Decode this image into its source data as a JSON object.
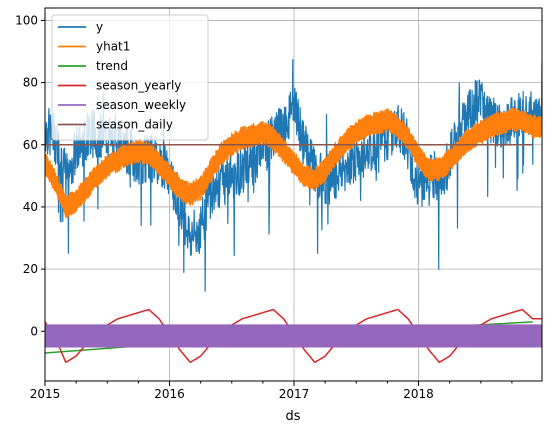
{
  "chart_data": {
    "type": "line",
    "xlabel": "ds",
    "ylabel": "",
    "title": "",
    "x_ticks": [
      "2015",
      "2016",
      "2017",
      "2018"
    ],
    "xlim": [
      "2015-01-01",
      "2018-12-31"
    ],
    "ylim": [
      -16,
      104
    ],
    "y_ticks": [
      0,
      20,
      40,
      60,
      80,
      100
    ],
    "grid": true,
    "legend_position": "upper-left",
    "series": [
      {
        "name": "y",
        "color": "#1f77b4",
        "approx_values": [
          {
            "x": "2015-01",
            "y": 65
          },
          {
            "x": "2015-02",
            "y": 62
          },
          {
            "x": "2015-03",
            "y": 50
          },
          {
            "x": "2015-04",
            "y": 58
          },
          {
            "x": "2015-05",
            "y": 63
          },
          {
            "x": "2015-06",
            "y": 64
          },
          {
            "x": "2015-07",
            "y": 63
          },
          {
            "x": "2015-08",
            "y": 60
          },
          {
            "x": "2015-09",
            "y": 58
          },
          {
            "x": "2015-10",
            "y": 55
          },
          {
            "x": "2015-11",
            "y": 56
          },
          {
            "x": "2015-12",
            "y": 55
          },
          {
            "x": "2016-01",
            "y": 50
          },
          {
            "x": "2016-02",
            "y": 42
          },
          {
            "x": "2016-03",
            "y": 30
          },
          {
            "x": "2016-04",
            "y": 33
          },
          {
            "x": "2016-05",
            "y": 45
          },
          {
            "x": "2016-06",
            "y": 48
          },
          {
            "x": "2016-07",
            "y": 50
          },
          {
            "x": "2016-08",
            "y": 52
          },
          {
            "x": "2016-09",
            "y": 55
          },
          {
            "x": "2016-10",
            "y": 58
          },
          {
            "x": "2016-11",
            "y": 62
          },
          {
            "x": "2016-12",
            "y": 65
          },
          {
            "x": "2017-01",
            "y": 72
          },
          {
            "x": "2017-02",
            "y": 60
          },
          {
            "x": "2017-03",
            "y": 52
          },
          {
            "x": "2017-04",
            "y": 48
          },
          {
            "x": "2017-05",
            "y": 50
          },
          {
            "x": "2017-06",
            "y": 53
          },
          {
            "x": "2017-07",
            "y": 56
          },
          {
            "x": "2017-08",
            "y": 58
          },
          {
            "x": "2017-09",
            "y": 60
          },
          {
            "x": "2017-10",
            "y": 63
          },
          {
            "x": "2017-11",
            "y": 66
          },
          {
            "x": "2017-12",
            "y": 60
          },
          {
            "x": "2018-01",
            "y": 45
          },
          {
            "x": "2018-02",
            "y": 52
          },
          {
            "x": "2018-03",
            "y": 48
          },
          {
            "x": "2018-04",
            "y": 55
          },
          {
            "x": "2018-05",
            "y": 65
          },
          {
            "x": "2018-06",
            "y": 72
          },
          {
            "x": "2018-07",
            "y": 74
          },
          {
            "x": "2018-08",
            "y": 68
          },
          {
            "x": "2018-09",
            "y": 66
          },
          {
            "x": "2018-10",
            "y": 68
          },
          {
            "x": "2018-11",
            "y": 70
          },
          {
            "x": "2018-12",
            "y": 70
          }
        ]
      },
      {
        "name": "yhat1",
        "color": "#ff7f0e",
        "approx_values": [
          {
            "x": "2015-01",
            "y": 54
          },
          {
            "x": "2015-02",
            "y": 48
          },
          {
            "x": "2015-03",
            "y": 40
          },
          {
            "x": "2015-04",
            "y": 42
          },
          {
            "x": "2015-05",
            "y": 46
          },
          {
            "x": "2015-06",
            "y": 50
          },
          {
            "x": "2015-07",
            "y": 53
          },
          {
            "x": "2015-08",
            "y": 55
          },
          {
            "x": "2015-09",
            "y": 57
          },
          {
            "x": "2015-10",
            "y": 58
          },
          {
            "x": "2015-11",
            "y": 57
          },
          {
            "x": "2015-12",
            "y": 54
          },
          {
            "x": "2016-01",
            "y": 50
          },
          {
            "x": "2016-02",
            "y": 46
          },
          {
            "x": "2016-03",
            "y": 44
          },
          {
            "x": "2016-04",
            "y": 46
          },
          {
            "x": "2016-05",
            "y": 52
          },
          {
            "x": "2016-06",
            "y": 57
          },
          {
            "x": "2016-07",
            "y": 60
          },
          {
            "x": "2016-08",
            "y": 62
          },
          {
            "x": "2016-09",
            "y": 63
          },
          {
            "x": "2016-10",
            "y": 64
          },
          {
            "x": "2016-11",
            "y": 62
          },
          {
            "x": "2016-12",
            "y": 58
          },
          {
            "x": "2017-01",
            "y": 54
          },
          {
            "x": "2017-02",
            "y": 50
          },
          {
            "x": "2017-03",
            "y": 49
          },
          {
            "x": "2017-04",
            "y": 52
          },
          {
            "x": "2017-05",
            "y": 57
          },
          {
            "x": "2017-06",
            "y": 61
          },
          {
            "x": "2017-07",
            "y": 64
          },
          {
            "x": "2017-08",
            "y": 66
          },
          {
            "x": "2017-09",
            "y": 67
          },
          {
            "x": "2017-10",
            "y": 68
          },
          {
            "x": "2017-11",
            "y": 66
          },
          {
            "x": "2017-12",
            "y": 62
          },
          {
            "x": "2018-01",
            "y": 56
          },
          {
            "x": "2018-02",
            "y": 52
          },
          {
            "x": "2018-03",
            "y": 52
          },
          {
            "x": "2018-04",
            "y": 55
          },
          {
            "x": "2018-05",
            "y": 59
          },
          {
            "x": "2018-06",
            "y": 62
          },
          {
            "x": "2018-07",
            "y": 64
          },
          {
            "x": "2018-08",
            "y": 66
          },
          {
            "x": "2018-09",
            "y": 67
          },
          {
            "x": "2018-10",
            "y": 68
          },
          {
            "x": "2018-11",
            "y": 68
          },
          {
            "x": "2018-12",
            "y": 66
          }
        ]
      },
      {
        "name": "trend",
        "color": "#2ca02c",
        "approx_values": [
          {
            "x": "2015-01",
            "y": -7
          },
          {
            "x": "2016-01",
            "y": -4
          },
          {
            "x": "2017-01",
            "y": -1
          },
          {
            "x": "2018-01",
            "y": 1
          },
          {
            "x": "2018-12",
            "y": 3
          }
        ]
      },
      {
        "name": "season_yearly",
        "color": "#d62728",
        "approx_values": [
          {
            "x": "2015-01",
            "y": 3
          },
          {
            "x": "2015-02",
            "y": -2
          },
          {
            "x": "2015-03",
            "y": -10
          },
          {
            "x": "2015-04",
            "y": -8
          },
          {
            "x": "2015-05",
            "y": -4
          },
          {
            "x": "2015-06",
            "y": 0
          },
          {
            "x": "2015-07",
            "y": 2
          },
          {
            "x": "2015-08",
            "y": 4
          },
          {
            "x": "2015-09",
            "y": 5
          },
          {
            "x": "2015-10",
            "y": 6
          },
          {
            "x": "2015-11",
            "y": 7
          },
          {
            "x": "2015-12",
            "y": 4
          },
          {
            "x": "2016-01",
            "y": -1
          },
          {
            "x": "2016-02",
            "y": -6
          },
          {
            "x": "2016-03",
            "y": -10
          },
          {
            "x": "2016-04",
            "y": -8
          },
          {
            "x": "2016-05",
            "y": -4
          },
          {
            "x": "2016-06",
            "y": 0
          },
          {
            "x": "2016-07",
            "y": 2
          },
          {
            "x": "2016-08",
            "y": 4
          },
          {
            "x": "2016-09",
            "y": 5
          },
          {
            "x": "2016-10",
            "y": 6
          },
          {
            "x": "2016-11",
            "y": 7
          },
          {
            "x": "2016-12",
            "y": 4
          },
          {
            "x": "2017-01",
            "y": -1
          },
          {
            "x": "2017-02",
            "y": -6
          },
          {
            "x": "2017-03",
            "y": -10
          },
          {
            "x": "2017-04",
            "y": -8
          },
          {
            "x": "2017-05",
            "y": -4
          },
          {
            "x": "2017-06",
            "y": 0
          },
          {
            "x": "2017-07",
            "y": 2
          },
          {
            "x": "2017-08",
            "y": 4
          },
          {
            "x": "2017-09",
            "y": 5
          },
          {
            "x": "2017-10",
            "y": 6
          },
          {
            "x": "2017-11",
            "y": 7
          },
          {
            "x": "2017-12",
            "y": 4
          },
          {
            "x": "2018-01",
            "y": -1
          },
          {
            "x": "2018-02",
            "y": -6
          },
          {
            "x": "2018-03",
            "y": -10
          },
          {
            "x": "2018-04",
            "y": -8
          },
          {
            "x": "2018-05",
            "y": -4
          },
          {
            "x": "2018-06",
            "y": 0
          },
          {
            "x": "2018-07",
            "y": 2
          },
          {
            "x": "2018-08",
            "y": 4
          },
          {
            "x": "2018-09",
            "y": 5
          },
          {
            "x": "2018-10",
            "y": 6
          },
          {
            "x": "2018-11",
            "y": 7
          },
          {
            "x": "2018-12",
            "y": 4
          }
        ]
      },
      {
        "name": "season_weekly",
        "color": "#9467bd",
        "approx_range": [
          -5,
          2
        ],
        "note_shape": "dense weekly oscillation band"
      },
      {
        "name": "season_daily",
        "color": "#8c564b",
        "approx_values": [
          {
            "x": "2015-01",
            "y": 60
          },
          {
            "x": "2018-12",
            "y": 60
          }
        ]
      }
    ]
  }
}
